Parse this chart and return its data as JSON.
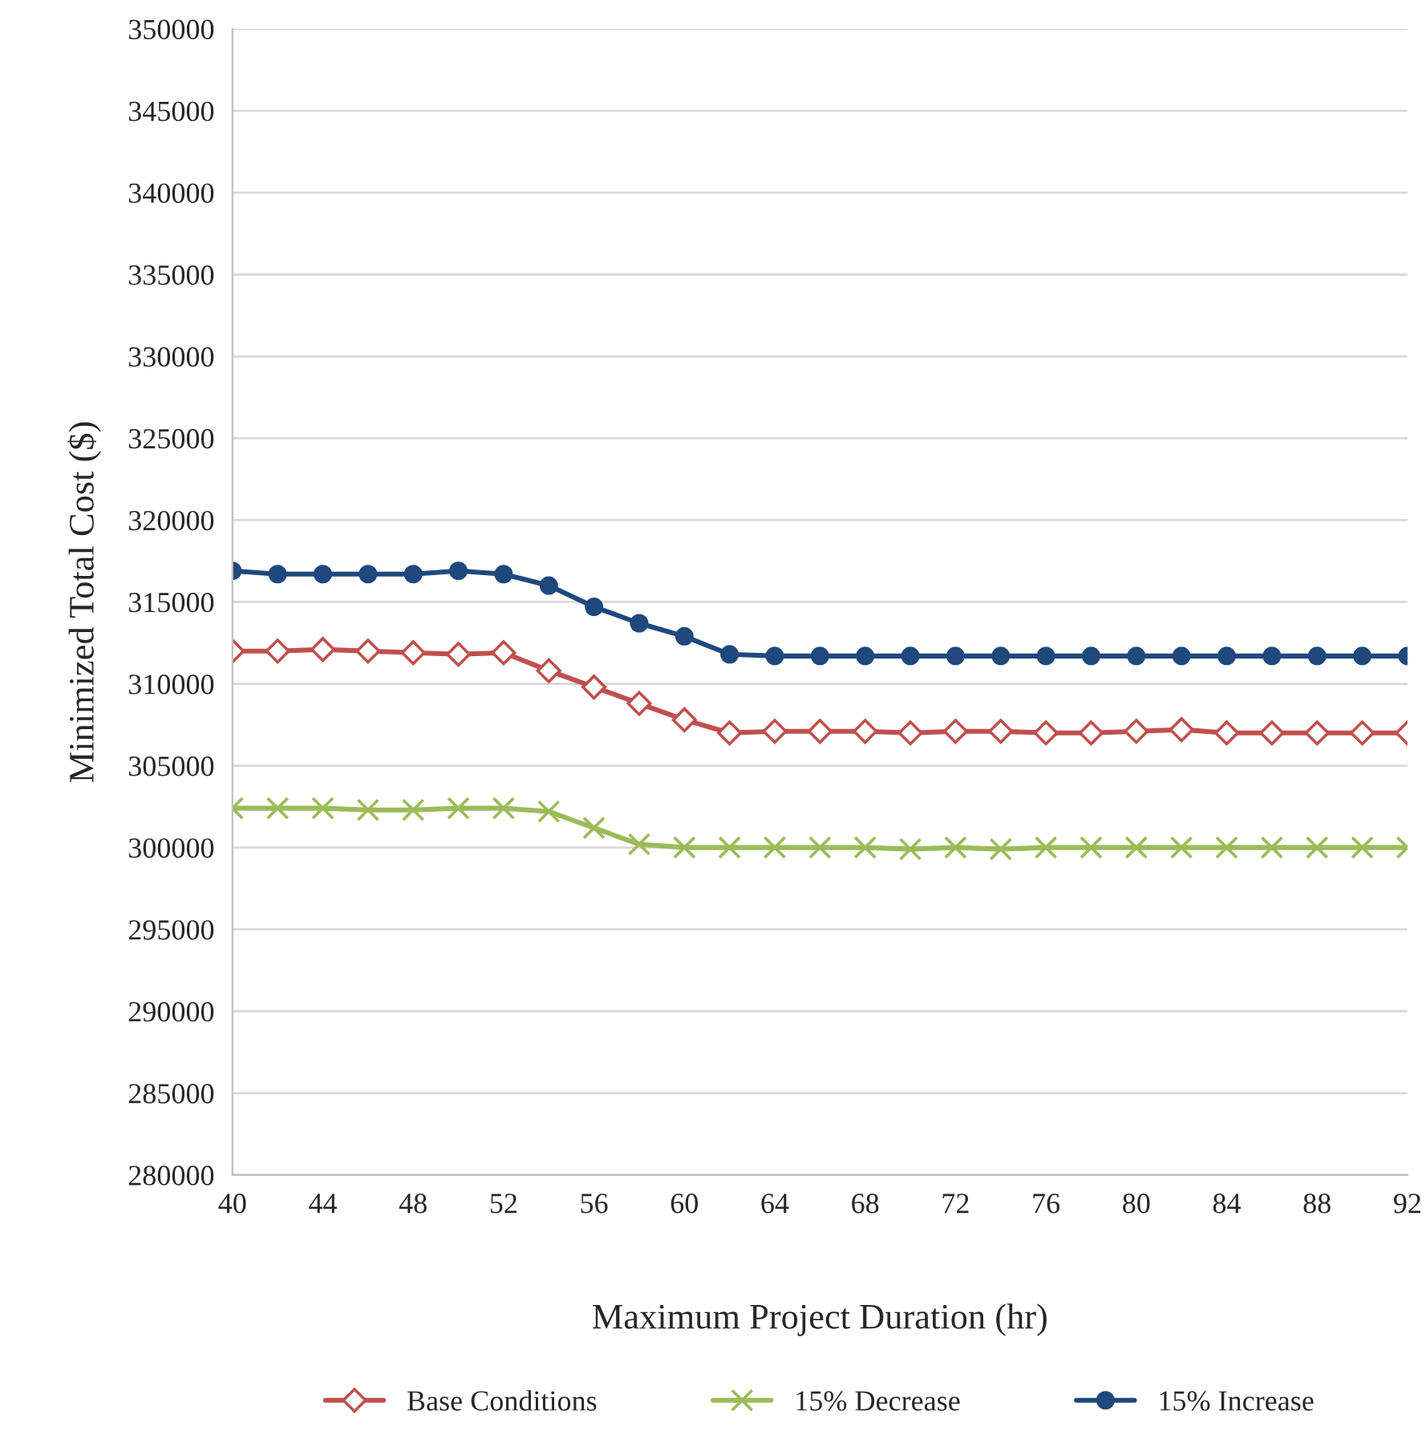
{
  "chart_data": {
    "type": "line",
    "xlabel": "Maximum Project Duration (hr)",
    "ylabel": "Minimized Total Cost ($)",
    "x": [
      40,
      42,
      44,
      46,
      48,
      50,
      52,
      54,
      56,
      58,
      60,
      62,
      64,
      66,
      68,
      70,
      72,
      74,
      76,
      78,
      80,
      82,
      84,
      86,
      88,
      90,
      92
    ],
    "xlim": [
      40,
      92
    ],
    "xticks": [
      40,
      44,
      48,
      52,
      56,
      60,
      64,
      68,
      72,
      76,
      80,
      84,
      88,
      92
    ],
    "ylim": [
      280000,
      350000
    ],
    "yticks": [
      280000,
      285000,
      290000,
      295000,
      300000,
      305000,
      310000,
      315000,
      320000,
      325000,
      330000,
      335000,
      340000,
      345000,
      350000
    ],
    "grid": "y",
    "legend": "bottom",
    "series": [
      {
        "name": "Base Conditions",
        "color": "#c0504d",
        "marker": "diamond",
        "values": [
          312000,
          312000,
          312100,
          312000,
          311900,
          311800,
          311900,
          310800,
          309800,
          308800,
          307800,
          307000,
          307100,
          307100,
          307100,
          307000,
          307100,
          307100,
          307000,
          307000,
          307100,
          307200,
          307000,
          307000,
          307000,
          307000,
          307000
        ]
      },
      {
        "name": "15% Decrease",
        "color": "#9bbb59",
        "marker": "cross",
        "values": [
          302400,
          302400,
          302400,
          302300,
          302300,
          302400,
          302400,
          302200,
          301200,
          300200,
          300000,
          300000,
          300000,
          300000,
          300000,
          299900,
          300000,
          299900,
          300000,
          300000,
          300000,
          300000,
          300000,
          300000,
          300000,
          300000,
          300000
        ]
      },
      {
        "name": "15% Increase",
        "color": "#1f497d",
        "marker": "circle",
        "values": [
          316900,
          316700,
          316700,
          316700,
          316700,
          316900,
          316700,
          316000,
          314700,
          313700,
          312900,
          311800,
          311700,
          311700,
          311700,
          311700,
          311700,
          311700,
          311700,
          311700,
          311700,
          311700,
          311700,
          311700,
          311700,
          311700,
          311700
        ]
      }
    ]
  }
}
